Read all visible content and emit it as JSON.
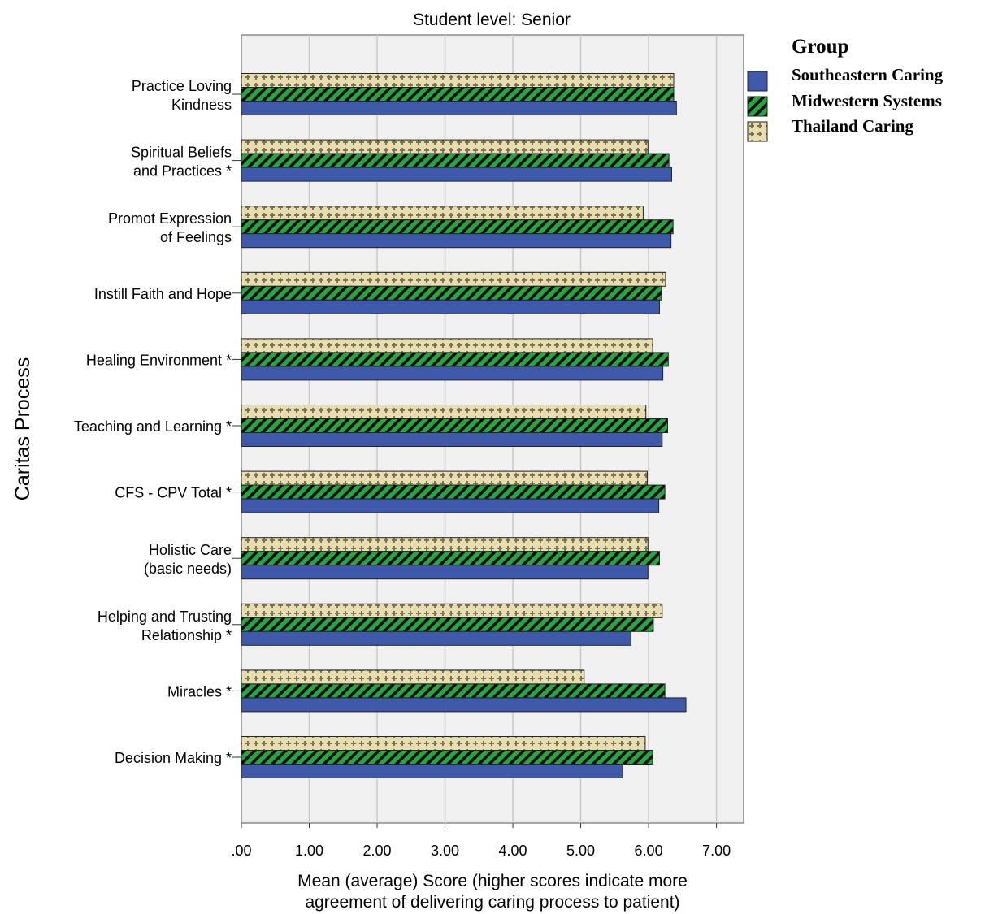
{
  "chart_data": {
    "type": "bar",
    "orientation": "horizontal",
    "title": "Student level: Senior",
    "ylabel": "Caritas Process",
    "xlabel_lines": [
      "Mean (average) Score (higher scores indicate more",
      "agreement of delivering caring process to patient)"
    ],
    "xlim": [
      0,
      7.4
    ],
    "x_ticks": [
      0,
      1,
      2,
      3,
      4,
      5,
      6,
      7
    ],
    "x_tick_labels": [
      ".00",
      "1.00",
      "2.00",
      "3.00",
      "4.00",
      "5.00",
      "6.00",
      "7.00"
    ],
    "grid": true,
    "legend_position": "right",
    "legend_title": "Group",
    "categories": [
      [
        "Practice Loving",
        "Kindness"
      ],
      [
        "Spiritual Beliefs",
        "and Practices *"
      ],
      [
        "Promot Expression",
        "of Feelings"
      ],
      [
        "Instill Faith and Hope"
      ],
      [
        "Healing Environment *"
      ],
      [
        "Teaching and Learning *"
      ],
      [
        "CFS - CPV Total *"
      ],
      [
        "Holistic Care",
        "(basic needs)"
      ],
      [
        "Helping and Trusting",
        "Relationship *"
      ],
      [
        "Miracles *"
      ],
      [
        "Decision Making *"
      ]
    ],
    "series": [
      {
        "name": "Southeastern Caring",
        "color": "#3F59AA",
        "pattern": "solid",
        "values": [
          6.41,
          6.34,
          6.33,
          6.16,
          6.21,
          6.2,
          6.15,
          5.99,
          5.74,
          6.55,
          5.62
        ]
      },
      {
        "name": "Midwestern Systems",
        "color": "#26A641",
        "pattern": "diagonal",
        "values": [
          6.37,
          6.3,
          6.36,
          6.19,
          6.29,
          6.28,
          6.24,
          6.16,
          6.07,
          6.24,
          6.06
        ]
      },
      {
        "name": "Thailand Caring",
        "color": "#E7DDAE",
        "pattern": "crosses",
        "values": [
          6.37,
          5.99,
          5.92,
          6.25,
          6.06,
          5.96,
          5.98,
          5.99,
          6.2,
          5.05,
          5.95
        ]
      }
    ]
  }
}
